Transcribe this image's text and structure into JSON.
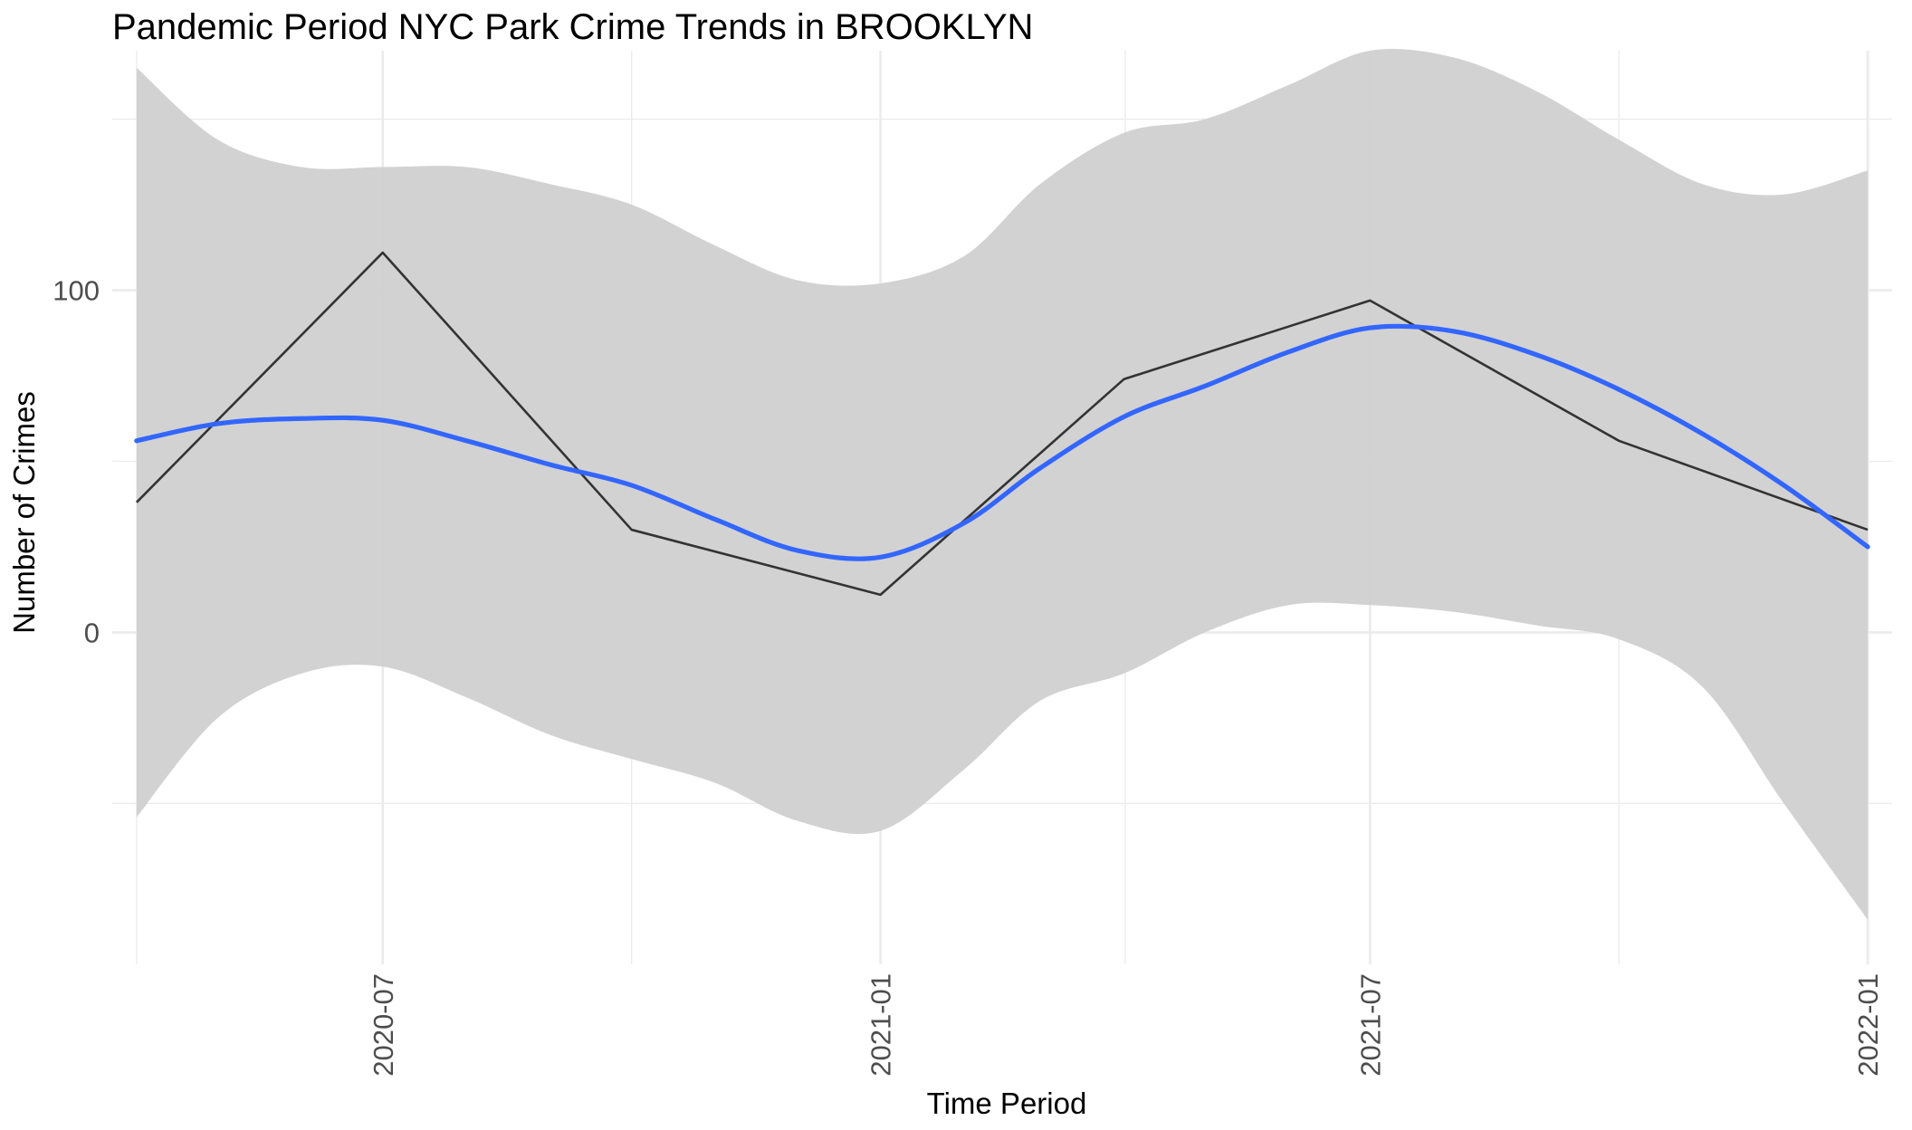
{
  "chart_data": {
    "type": "line",
    "title": "Pandemic Period NYC Park Crime Trends in BROOKLYN",
    "xlabel": "Time Period",
    "ylabel": "Number of Crimes",
    "x_tick_labels": [
      "2020-07",
      "2021-01",
      "2021-07",
      "2022-01"
    ],
    "y_tick_labels": [
      "0",
      "100"
    ],
    "ylim": [
      -97,
      170
    ],
    "xlim": [
      "2020-03-23",
      "2022-01-10"
    ],
    "grid": true,
    "legend": "none",
    "series": [
      {
        "kind": "observed",
        "color": "#333333",
        "x": [
          "2020-04-01",
          "2020-07-01",
          "2020-10-01",
          "2021-01-01",
          "2021-04-01",
          "2021-07-01",
          "2021-10-01",
          "2022-01-01"
        ],
        "values": [
          38,
          111,
          30,
          11,
          74,
          97,
          56,
          30
        ]
      },
      {
        "kind": "smooth",
        "color": "#3366ff",
        "x": [
          "2020-04-01",
          "2020-05-01",
          "2020-06-01",
          "2020-07-01",
          "2020-08-01",
          "2020-09-01",
          "2020-10-01",
          "2020-11-01",
          "2020-12-01",
          "2021-01-01",
          "2021-02-01",
          "2021-03-01",
          "2021-04-01",
          "2021-05-01",
          "2021-06-01",
          "2021-07-01",
          "2021-08-01",
          "2021-09-01",
          "2021-10-01",
          "2021-11-01",
          "2021-12-01",
          "2022-01-01"
        ],
        "values": [
          56,
          61,
          62.5,
          62,
          56,
          49,
          43,
          33,
          24,
          22,
          32,
          48,
          63,
          72,
          82,
          89,
          88,
          81,
          71,
          58,
          43,
          25
        ],
        "band_low": [
          -54,
          -25,
          -12,
          -10,
          -19,
          -30,
          -37,
          -44,
          -55,
          -58,
          -40,
          -20,
          -12,
          0,
          8,
          8,
          6,
          2,
          -2,
          -16,
          -50,
          -84
        ],
        "band_high": [
          165,
          144,
          136,
          136,
          136,
          131,
          125,
          113,
          103,
          102,
          110,
          131,
          146,
          150,
          160,
          170,
          168,
          158,
          144,
          131,
          128,
          135
        ]
      }
    ],
    "colors": {
      "band": "#d0d0d0",
      "grid": "#ebebeb",
      "background": "#ffffff"
    }
  }
}
